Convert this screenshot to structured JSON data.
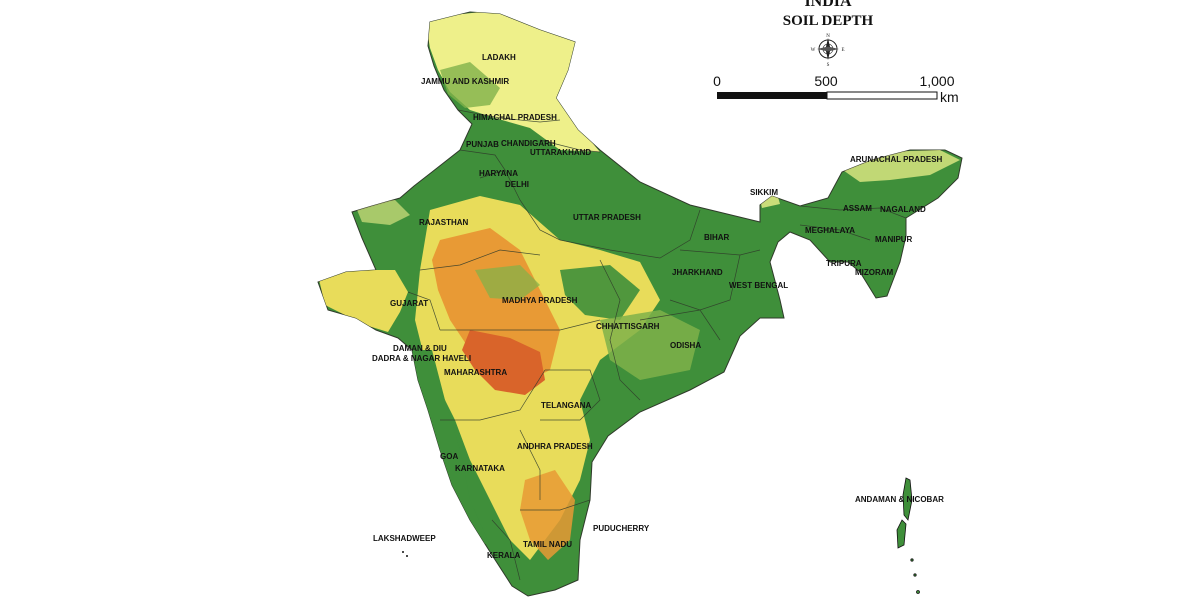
{
  "title": {
    "line1": "INDIA",
    "line2": "SOIL DEPTH"
  },
  "compass": {
    "north": "N",
    "south": "S",
    "east": "E",
    "west": "W",
    "icon": "compass-rose-icon"
  },
  "scale_bar": {
    "tick_0": "0",
    "tick_500": "500",
    "tick_1000": "1,000",
    "unit": "km"
  },
  "colors": {
    "deep_green": "#3f8f3a",
    "green_light": "#7fb24a",
    "yellow_light": "#eef08a",
    "yellow": "#e8dc5a",
    "orange": "#e89a35",
    "red_orange": "#d9642a",
    "outline": "#2f3a2a"
  },
  "labels": {
    "ladakh": "LADAKH",
    "jammu_kashmir": "JAMMU AND KASHMIR",
    "himachal": "HIMACHAL PRADESH",
    "punjab": "PUNJAB",
    "chandigarh": "CHANDIGARH",
    "uttarakhand": "UTTARAKHAND",
    "haryana": "HARYANA",
    "delhi": "DELHI",
    "rajasthan": "RAJASTHAN",
    "uttar_pradesh": "UTTAR PRADESH",
    "bihar": "BIHAR",
    "sikkim": "SIKKIM",
    "arunachal": "ARUNACHAL PRADESH",
    "assam": "ASSAM",
    "nagaland": "NAGALAND",
    "meghalaya": "MEGHALAYA",
    "manipur": "MANIPUR",
    "tripura": "TRIPURA",
    "mizoram": "MIZORAM",
    "jharkhand": "JHARKHAND",
    "west_bengal": "WEST BENGAL",
    "gujarat": "GUJARAT",
    "madhya_pradesh": "MADHYA PRADESH",
    "chhattisgarh": "CHHATTISGARH",
    "odisha": "ODISHA",
    "daman_diu": "DAMAN & DIU",
    "dadra": "DADRA & NAGAR HAVELI",
    "maharashtra": "MAHARASHTRA",
    "telangana": "TELANGANA",
    "andhra": "ANDHRA PRADESH",
    "goa": "GOA",
    "karnataka": "KARNATAKA",
    "andaman": "ANDAMAN & NICOBAR",
    "lakshadweep": "LAKSHADWEEP",
    "puducherry": "PUDUCHERRY",
    "tamil_nadu": "TAMIL NADU",
    "kerala": "KERALA"
  }
}
